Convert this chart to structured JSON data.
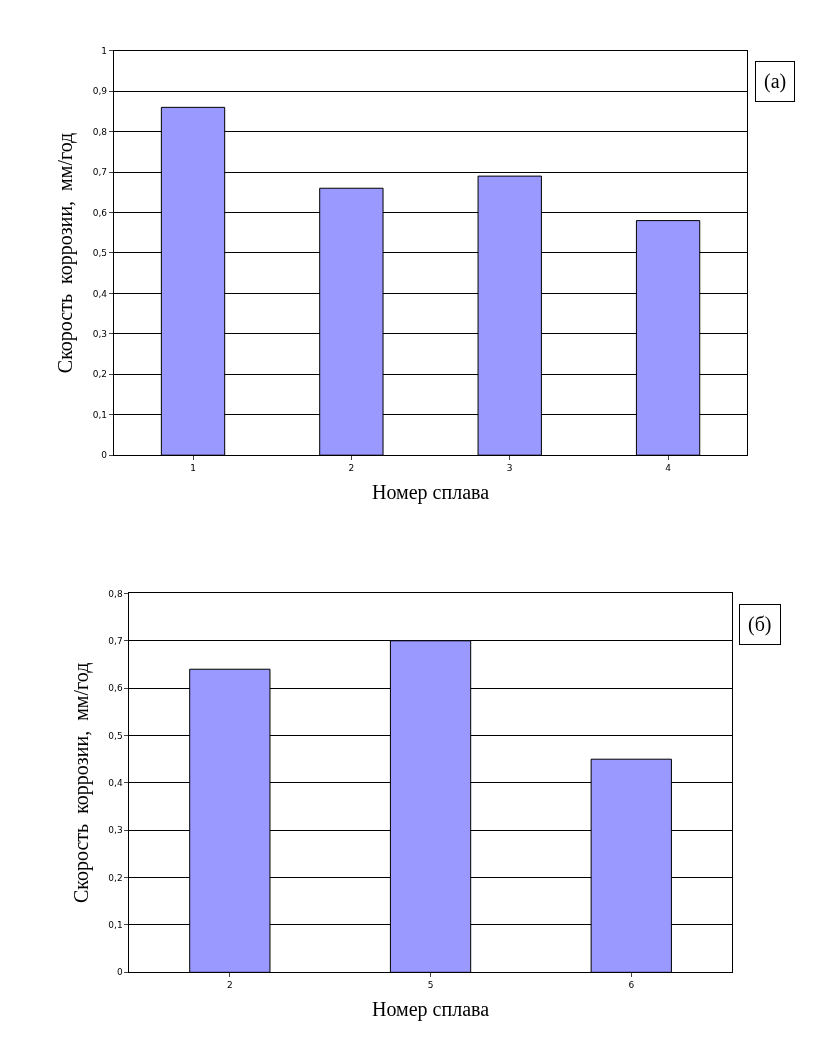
{
  "chart_data": [
    {
      "type": "bar",
      "categories": [
        "1",
        "2",
        "3",
        "4"
      ],
      "values": [
        0.86,
        0.66,
        0.69,
        0.58
      ],
      "color": "#9999ff",
      "xlabel": "Номер сплава",
      "ylabel": "Скорость  коррозии,  мм/год",
      "ylim": [
        0,
        1
      ],
      "yticks": [
        0,
        {
          "value": 0.1,
          "label": "0,1"
        },
        {
          "value": 0.2,
          "label": "0,2"
        },
        {
          "value": 0.3,
          "label": "0,3"
        },
        {
          "value": 0.4,
          "label": "0,4"
        },
        {
          "value": 0.5,
          "label": "0,5"
        },
        {
          "value": 0.6,
          "label": "0,6"
        },
        {
          "value": 0.7,
          "label": "0,7"
        },
        {
          "value": 0.8,
          "label": "0,8"
        },
        {
          "value": 0.9,
          "label": "0,9"
        },
        1
      ],
      "grid": "y",
      "annotations": [
        "(a)"
      ]
    },
    {
      "type": "bar",
      "categories": [
        "2",
        "5",
        "6"
      ],
      "values": [
        0.64,
        0.7,
        0.45
      ],
      "color": "#9999ff",
      "xlabel": "Номер сплава",
      "ylabel": "Скорость  коррозии,  мм/год",
      "ylim": [
        0,
        0.8
      ],
      "yticks": [
        0,
        {
          "value": 0.1,
          "label": "0,1"
        },
        {
          "value": 0.2,
          "label": "0,2"
        },
        {
          "value": 0.3,
          "label": "0,3"
        },
        {
          "value": 0.4,
          "label": "0,4"
        },
        {
          "value": 0.5,
          "label": "0,5"
        },
        {
          "value": 0.6,
          "label": "0,6"
        },
        {
          "value": 0.7,
          "label": "0,7"
        },
        {
          "value": 0.8,
          "label": "0,8"
        }
      ],
      "grid": "y",
      "annotations": [
        "(б)"
      ]
    }
  ]
}
